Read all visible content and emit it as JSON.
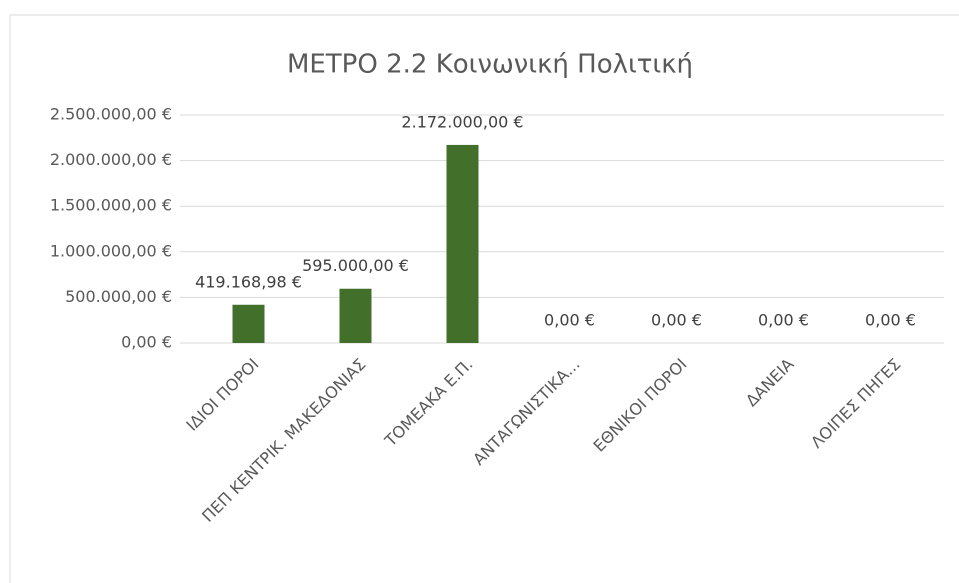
{
  "chart_data": {
    "type": "bar",
    "title": "ΜΕΤΡΟ  2.2 Κοινωνική  Πολιτική",
    "categories": [
      "ΙΔΙΟΙ ΠΟΡΟΙ",
      "ΠΕΠ ΚΕΝΤΡΙΚ. ΜΑΚΕΔΟΝΙΑΣ",
      "ΤΟΜΕΑΚΑ Ε.Π.",
      "ΑΝΤΑΓΩΝΙΣΤΙΚΑ...",
      "ΕΘΝΙΚΟΙ ΠΟΡΟΙ",
      "ΔΑΝΕΙΑ",
      "ΛΟΙΠΕΣ ΠΗΓΕΣ"
    ],
    "values": [
      419168.98,
      595000,
      2172000,
      0,
      0,
      0,
      0
    ],
    "value_labels": [
      "419.168,98 €",
      "595.000,00 €",
      "2.172.000,00 €",
      "0,00 €",
      "0,00 €",
      "0,00 €",
      "0,00 €"
    ],
    "color": "#426f2a",
    "ylim": [
      0,
      2500000
    ],
    "yticks": [
      {
        "value": 0,
        "label": "0,00 €"
      },
      {
        "value": 500000,
        "label": "500.000,00 €"
      },
      {
        "value": 1000000,
        "label": "1.000.000,00 €"
      },
      {
        "value": 1500000,
        "label": "1.500.000,00 €"
      },
      {
        "value": 2000000,
        "label": "2.000.000,00 €"
      },
      {
        "value": 2500000,
        "label": "2.500.000,00 €"
      }
    ],
    "grid": true
  }
}
